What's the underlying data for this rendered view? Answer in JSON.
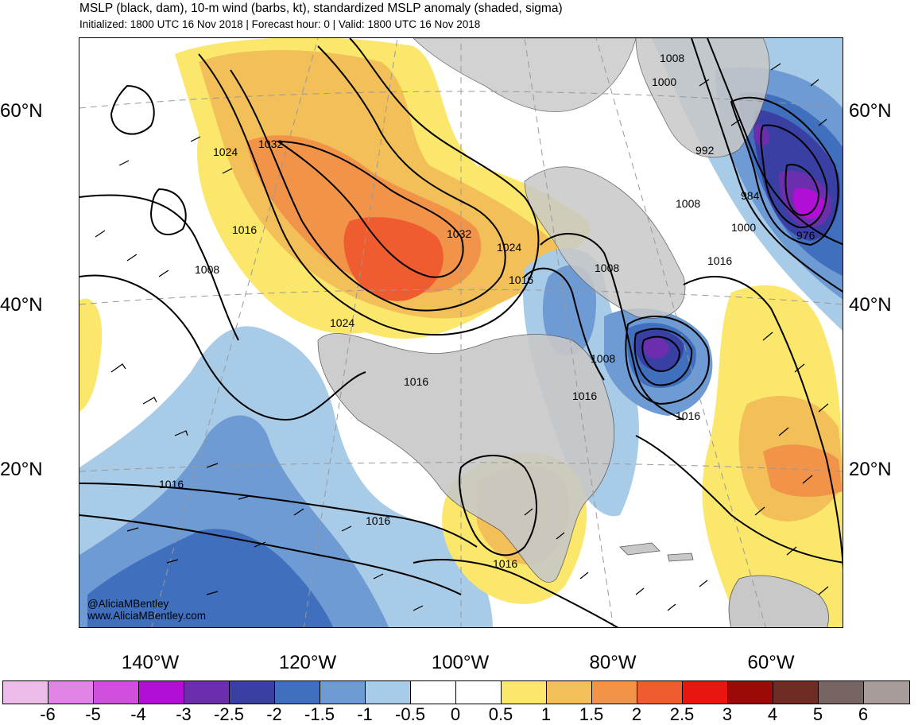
{
  "header": {
    "title": "MSLP (black, dam), 10-m wind (barbs, kt), standardized MSLP anomaly (shaded, sigma)",
    "subtitle": "Initialized: 1800 UTC 16 Nov 2018 | Forecast hour: 0 | Valid: 1800 UTC 16 Nov 2018"
  },
  "map": {
    "lat_labels": [
      "60°N",
      "40°N",
      "20°N"
    ],
    "lon_labels": [
      "140°W",
      "120°W",
      "100°W",
      "80°W",
      "60°W"
    ],
    "isobar_labels": [
      "1008",
      "1000",
      "992",
      "984",
      "976",
      "1000",
      "1008",
      "1016",
      "1024",
      "1032",
      "1016",
      "1008",
      "1032",
      "1024",
      "1016",
      "1008",
      "1024",
      "1016",
      "1008",
      "1016",
      "1016",
      "1016",
      "1016",
      "1016"
    ],
    "credit": [
      "@AliciaMBentley",
      "www.AliciaMBentley.com"
    ],
    "colors": {
      "land": "#c8c8c8",
      "ocean": "#ffffff",
      "isobar": "#000000"
    }
  },
  "colorbar": {
    "colors": [
      "#ebbde8",
      "#e085e6",
      "#d04fdc",
      "#b10fd6",
      "#6b2fae",
      "#3a3fa3",
      "#3f6fbd",
      "#6e9bd3",
      "#a8cbe8",
      "#ffffff",
      "#ffffff",
      "#fae76b",
      "#f2bf58",
      "#f2934a",
      "#ef5c30",
      "#e8160f",
      "#9b0a06",
      "#6f2c25",
      "#766562",
      "#a79c9a"
    ],
    "ticks": [
      "-6",
      "-5",
      "-4",
      "-3",
      "-2.5",
      "-2",
      "-1.5",
      "-1",
      "-0.5",
      "0",
      "0.5",
      "1",
      "1.5",
      "2",
      "2.5",
      "3",
      "4",
      "5",
      "6"
    ]
  }
}
